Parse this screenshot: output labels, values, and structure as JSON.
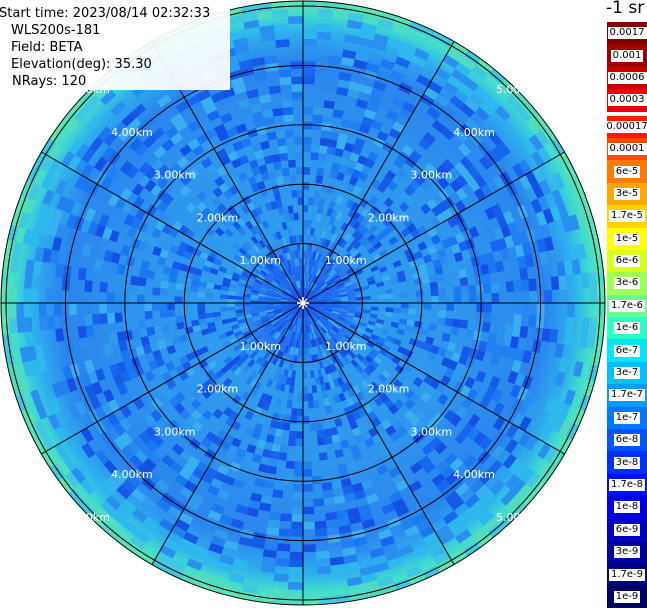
{
  "info": {
    "start_time": "Start time: 2023/08/14 02:32:33",
    "device": "WLS200s-181",
    "field": "Field: BETA",
    "elevation": "Elevation(deg): 35.30",
    "nrays": "NRays: 120"
  },
  "unit": "-1 sr",
  "range_rings": [
    "1.00km",
    "2.00km",
    "3.00km",
    "4.00km",
    "5.00km"
  ],
  "colorbar": {
    "groups": [
      [
        {
          "label": "0.0017",
          "color": "#800000"
        },
        {
          "label": "0.001",
          "color": "#a00000"
        },
        {
          "label": "0.0006",
          "color": "#c80000"
        },
        {
          "label": "0.0003",
          "color": "#f00000"
        }
      ],
      [
        {
          "label": "0.00017",
          "color": "#ff1a00"
        },
        {
          "label": "0.0001",
          "color": "#ff4a00"
        },
        {
          "label": "6e-5",
          "color": "#ff7a00"
        },
        {
          "label": "3e-5",
          "color": "#ffa800"
        },
        {
          "label": "1.7e-5",
          "color": "#ffd200"
        },
        {
          "label": "1e-5",
          "color": "#ffff00"
        },
        {
          "label": "6e-6",
          "color": "#d7ff1e"
        },
        {
          "label": "3e-6",
          "color": "#a0ff56"
        },
        {
          "label": "1.7e-6",
          "color": "#66ff90"
        },
        {
          "label": "1e-6",
          "color": "#2cffca"
        },
        {
          "label": "6e-7",
          "color": "#00e6ff"
        },
        {
          "label": "3e-7",
          "color": "#00c0ff"
        },
        {
          "label": "1.7e-7",
          "color": "#009cff"
        },
        {
          "label": "1e-7",
          "color": "#0078ff"
        },
        {
          "label": "6e-8",
          "color": "#0054ff"
        },
        {
          "label": "3e-8",
          "color": "#0030ff"
        },
        {
          "label": "1.7e-8",
          "color": "#0010ff"
        },
        {
          "label": "1e-8",
          "color": "#0000e6"
        },
        {
          "label": "6e-9",
          "color": "#0000c0"
        },
        {
          "label": "3e-9",
          "color": "#00009c"
        },
        {
          "label": "1.7e-9",
          "color": "#000080"
        },
        {
          "label": "1e-9",
          "color": "#000064"
        }
      ]
    ]
  }
}
